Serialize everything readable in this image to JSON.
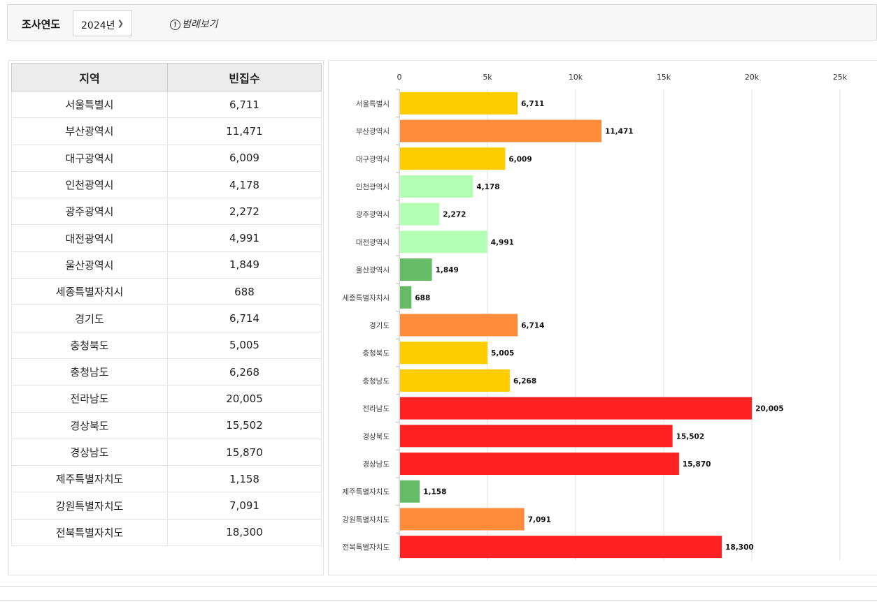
{
  "toolbar": {
    "year_label": "조사연도",
    "year_value": "2024년",
    "legend_link": "범례보기"
  },
  "table": {
    "headers": [
      "지역",
      "빈집수"
    ],
    "rows": [
      [
        "서울특별시",
        "6,711"
      ],
      [
        "부산광역시",
        "11,471"
      ],
      [
        "대구광역시",
        "6,009"
      ],
      [
        "인천광역시",
        "4,178"
      ],
      [
        "광주광역시",
        "2,272"
      ],
      [
        "대전광역시",
        "4,991"
      ],
      [
        "울산광역시",
        "1,849"
      ],
      [
        "세종특별자치시",
        "688"
      ],
      [
        "경기도",
        "6,714"
      ],
      [
        "충청북도",
        "5,005"
      ],
      [
        "충청남도",
        "6,268"
      ],
      [
        "전라남도",
        "20,005"
      ],
      [
        "경상북도",
        "15,502"
      ],
      [
        "경상남도",
        "15,870"
      ],
      [
        "제주특별자치도",
        "1,158"
      ],
      [
        "강원특별자치도",
        "7,091"
      ],
      [
        "전북특별자치도",
        "18,300"
      ]
    ]
  },
  "chart_data": {
    "type": "bar",
    "orientation": "horizontal",
    "categories": [
      "서울특별시",
      "부산광역시",
      "대구광역시",
      "인천광역시",
      "광주광역시",
      "대전광역시",
      "울산광역시",
      "세종특별자치시",
      "경기도",
      "충청북도",
      "충청남도",
      "전라남도",
      "경상북도",
      "경상남도",
      "제주특별자치도",
      "강원특별자치도",
      "전북특별자치도"
    ],
    "values": [
      6711,
      11471,
      6009,
      4178,
      2272,
      4991,
      1849,
      688,
      6714,
      5005,
      6268,
      20005,
      15502,
      15870,
      1158,
      7091,
      18300
    ],
    "value_labels": [
      "6,711",
      "11,471",
      "6,009",
      "4,178",
      "2,272",
      "4,991",
      "1,849",
      "688",
      "6,714",
      "5,005",
      "6,268",
      "20,005",
      "15,502",
      "15,870",
      "1,158",
      "7,091",
      "18,300"
    ],
    "bar_colors": [
      "#ffcc00",
      "#ff8c3a",
      "#ffcc00",
      "#b3ffb3",
      "#b3ffb3",
      "#b3ffb3",
      "#66bb66",
      "#66bb66",
      "#ff8c3a",
      "#ffcc00",
      "#ffcc00",
      "#ff2222",
      "#ff2222",
      "#ff2222",
      "#66bb66",
      "#ff8c3a",
      "#ff2222"
    ],
    "xlim": [
      0,
      25000
    ],
    "xticks": [
      0,
      5000,
      10000,
      15000,
      20000,
      25000
    ],
    "xtick_labels": [
      "0",
      "5k",
      "10k",
      "15k",
      "20k",
      "25k"
    ],
    "axis_position": "top",
    "grid": true,
    "title": "",
    "xlabel": "",
    "ylabel": ""
  }
}
